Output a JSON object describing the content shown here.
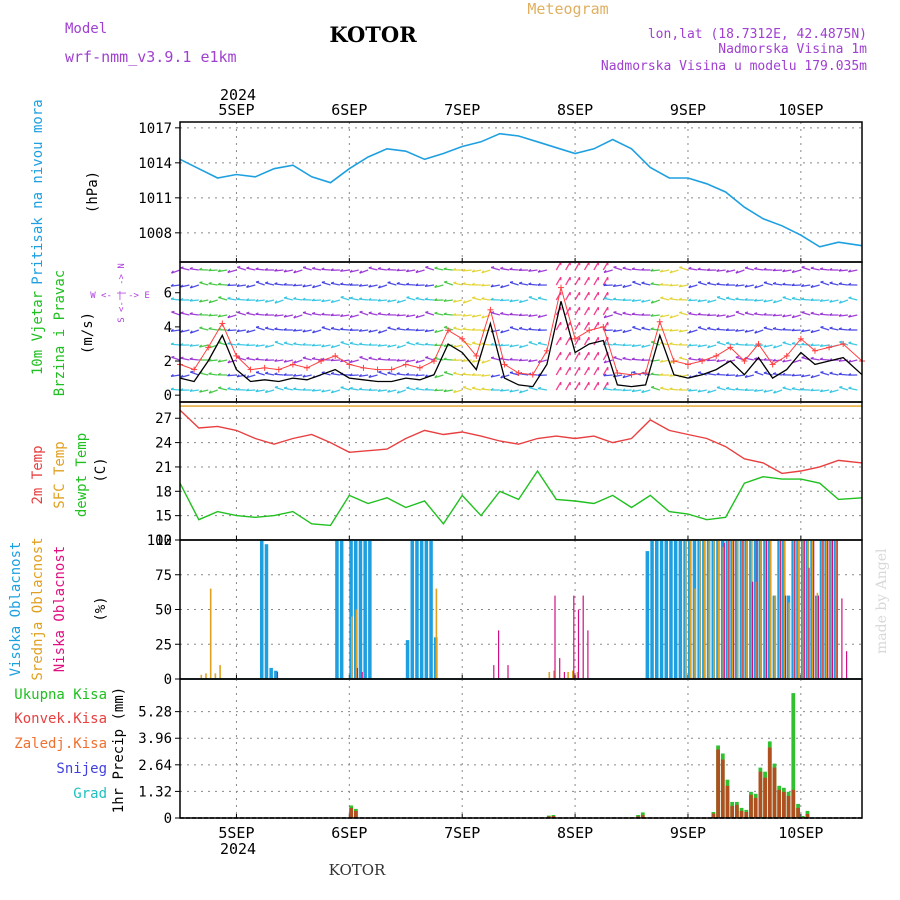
{
  "header": {
    "model_label": "Model",
    "model_name": "wrf-nmm_v3.9.1 e1km",
    "title": "KOTOR",
    "subtitle": "Meteogram",
    "coords": "lon,lat (18.7312E, 42.4875N)",
    "altitude": "Nadmorska Visina 1m",
    "model_altitude": "Nadmorska Visina u modelu 179.035m",
    "footer": "KOTOR",
    "watermark": "made by Angel"
  },
  "axes": {
    "year": "2024",
    "days": [
      "5SEP",
      "6SEP",
      "7SEP",
      "8SEP",
      "9SEP",
      "10SEP"
    ],
    "day_positions_hours": [
      12,
      36,
      60,
      84,
      108,
      132
    ],
    "time_range_hours": [
      0,
      145
    ]
  },
  "panels": {
    "pressure": {
      "label": "Pritisak na nivou mora",
      "unit": "(hPa)"
    },
    "wind": {
      "label1": "10m Vjetar",
      "label2": "Brzina i Pravac",
      "unit": "(m/s)",
      "compass": "S <- | -> N",
      "compass_we": "W <- | -> E"
    },
    "temp": {
      "label_2m": "2m Temp",
      "label_sfc": "SFC Temp",
      "label_dewpt": "dewpt Temp",
      "unit": "(C)"
    },
    "cloud": {
      "label_high": "Visoka Oblacnost",
      "label_mid": "Srednja Oblacnost",
      "label_low": "Niska Oblacnost",
      "unit": "(%)"
    },
    "precip": {
      "label_total": "Ukupna Kisa",
      "label_conv": "Konvek.Kisa",
      "label_frz": "Zaledj.Kisa",
      "label_snow": "Snijeg",
      "label_hail": "Grad",
      "unit": "1hr Precip (mm)"
    }
  },
  "colors": {
    "pressure": "#1ea0e0",
    "temp_2m": "#e84040",
    "temp_sfc": "#e0a020",
    "dewpt": "#20c020",
    "cloud_high": "#1ea0e0",
    "cloud_mid": "#e0a020",
    "cloud_low": "#d01080",
    "precip_total": "#30c030",
    "precip_conv": "#b05020",
    "wind_speed": "#000000",
    "wind_gust": "#ff4040"
  },
  "chart_data": [
    {
      "type": "line",
      "name": "pressure",
      "ylabel": "(hPa)",
      "ylim": [
        1005.5,
        1017.5
      ],
      "yticks": [
        1008,
        1011,
        1014,
        1017
      ],
      "grid": true,
      "x": [
        0,
        4,
        8,
        12,
        16,
        20,
        24,
        28,
        32,
        36,
        40,
        44,
        48,
        52,
        56,
        60,
        64,
        68,
        72,
        76,
        80,
        84,
        88,
        92,
        96,
        100,
        104,
        108,
        112,
        116,
        120,
        124,
        128,
        132,
        136,
        140,
        145
      ],
      "series": [
        {
          "values": [
            1014.3,
            1013.5,
            1012.7,
            1013.0,
            1012.8,
            1013.5,
            1013.8,
            1012.8,
            1012.3,
            1013.5,
            1014.5,
            1015.2,
            1015.0,
            1014.3,
            1014.8,
            1015.4,
            1015.8,
            1016.5,
            1016.3,
            1015.8,
            1015.3,
            1014.8,
            1015.2,
            1016.0,
            1015.2,
            1013.6,
            1012.7,
            1012.7,
            1012.2,
            1011.5,
            1010.2,
            1009.2,
            1008.6,
            1007.8,
            1006.8,
            1007.2,
            1006.9
          ]
        }
      ]
    },
    {
      "type": "line",
      "name": "wind",
      "ylabel": "(m/s)",
      "ylim": [
        -0.4,
        7.8
      ],
      "yticks": [
        0,
        2,
        4,
        6
      ],
      "grid": false,
      "x": [
        0,
        3,
        6,
        9,
        12,
        15,
        18,
        21,
        24,
        27,
        30,
        33,
        36,
        39,
        42,
        45,
        48,
        51,
        54,
        57,
        60,
        63,
        66,
        69,
        72,
        75,
        78,
        81,
        84,
        87,
        90,
        93,
        96,
        99,
        102,
        105,
        108,
        111,
        114,
        117,
        120,
        123,
        126,
        129,
        132,
        135,
        138,
        141,
        145
      ],
      "series": [
        {
          "values": [
            1.0,
            0.8,
            2.0,
            3.5,
            1.5,
            0.8,
            0.9,
            0.8,
            1.0,
            0.9,
            1.2,
            1.5,
            1.0,
            0.9,
            0.8,
            0.8,
            1.0,
            0.9,
            1.2,
            3.0,
            2.5,
            1.5,
            4.2,
            1.0,
            0.6,
            0.5,
            1.8,
            5.5,
            2.5,
            3.0,
            3.2,
            0.6,
            0.5,
            0.6,
            3.5,
            1.2,
            1.0,
            1.2,
            1.5,
            2.0,
            1.2,
            2.2,
            1.0,
            1.5,
            2.5,
            1.8,
            2.0,
            2.2,
            1.2
          ]
        },
        {
          "values": [
            1.8,
            1.5,
            2.8,
            4.2,
            2.3,
            1.5,
            1.6,
            1.5,
            1.8,
            1.6,
            2.0,
            2.3,
            1.8,
            1.6,
            1.5,
            1.5,
            1.8,
            1.6,
            2.0,
            3.8,
            3.3,
            2.3,
            5.0,
            1.8,
            1.3,
            1.2,
            2.6,
            6.3,
            3.3,
            3.8,
            4.0,
            1.3,
            1.2,
            1.3,
            4.3,
            2.0,
            1.8,
            2.0,
            2.3,
            2.8,
            2.0,
            3.0,
            1.8,
            2.3,
            3.3,
            2.6,
            2.8,
            3.0,
            2.0
          ]
        }
      ]
    },
    {
      "type": "line",
      "name": "temperature",
      "ylabel": "(C)",
      "ylim": [
        12,
        29
      ],
      "yticks": [
        12,
        15,
        18,
        21,
        24,
        27
      ],
      "grid": true,
      "x": [
        0,
        4,
        8,
        12,
        16,
        20,
        24,
        28,
        32,
        36,
        40,
        44,
        48,
        52,
        56,
        60,
        64,
        68,
        72,
        76,
        80,
        84,
        88,
        92,
        96,
        100,
        104,
        108,
        112,
        116,
        120,
        124,
        128,
        132,
        136,
        140,
        145
      ],
      "series": [
        {
          "values": [
            28.0,
            25.8,
            26.0,
            25.5,
            24.5,
            23.8,
            24.5,
            25.0,
            24.0,
            22.8,
            23.0,
            23.2,
            24.5,
            25.5,
            25.0,
            25.3,
            24.8,
            24.2,
            23.8,
            24.5,
            24.8,
            24.5,
            24.8,
            24.0,
            24.5,
            26.8,
            25.5,
            25.0,
            24.5,
            23.5,
            22.0,
            21.5,
            20.2,
            20.5,
            21.0,
            21.8,
            21.5
          ]
        },
        {
          "values": [
            28.5,
            28.5,
            28.5,
            28.5,
            28.5,
            28.5,
            28.5,
            28.5,
            28.5,
            28.5,
            28.5,
            28.5,
            28.5,
            28.5,
            28.5,
            28.5,
            28.5,
            28.5,
            28.5,
            28.5,
            28.5,
            28.5,
            28.5,
            28.5,
            28.5,
            28.5,
            28.5,
            28.5,
            28.5,
            28.5,
            28.5,
            28.5,
            28.5,
            28.5,
            28.5,
            28.5,
            28.5
          ]
        },
        {
          "values": [
            19.0,
            14.5,
            15.5,
            15.0,
            14.8,
            15.0,
            15.5,
            14.0,
            13.8,
            17.5,
            16.5,
            17.2,
            16.0,
            16.8,
            14.0,
            17.5,
            15.0,
            18.0,
            17.0,
            20.5,
            17.0,
            16.8,
            16.5,
            17.5,
            16.0,
            17.5,
            15.5,
            15.2,
            14.5,
            14.8,
            19.0,
            19.8,
            19.5,
            19.5,
            19.0,
            17.0,
            17.2
          ]
        }
      ]
    },
    {
      "type": "bar",
      "name": "cloud_cover",
      "ylabel": "(%)",
      "ylim": [
        0,
        100
      ],
      "yticks": [
        0,
        25,
        50,
        75,
        100
      ],
      "grid": true,
      "high": [
        [
          17,
          100
        ],
        [
          18,
          97
        ],
        [
          19,
          8
        ],
        [
          20,
          6
        ],
        [
          33,
          100
        ],
        [
          34,
          100
        ],
        [
          36,
          100
        ],
        [
          37,
          100
        ],
        [
          38,
          100
        ],
        [
          39,
          100
        ],
        [
          40,
          100
        ],
        [
          48,
          28
        ],
        [
          49,
          100
        ],
        [
          50,
          100
        ],
        [
          51,
          100
        ],
        [
          52,
          100
        ],
        [
          53,
          100
        ],
        [
          54,
          30
        ],
        [
          99,
          92
        ],
        [
          100,
          100
        ],
        [
          101,
          100
        ],
        [
          102,
          100
        ],
        [
          103,
          100
        ],
        [
          104,
          100
        ],
        [
          105,
          100
        ],
        [
          106,
          100
        ],
        [
          107,
          100
        ],
        [
          108,
          100
        ],
        [
          109,
          100
        ],
        [
          110,
          100
        ],
        [
          111,
          100
        ],
        [
          112,
          100
        ],
        [
          113,
          100
        ],
        [
          114,
          100
        ],
        [
          115,
          100
        ],
        [
          116,
          100
        ],
        [
          117,
          100
        ],
        [
          118,
          100
        ],
        [
          119,
          100
        ],
        [
          120,
          100
        ],
        [
          121,
          100
        ],
        [
          122,
          100
        ],
        [
          123,
          100
        ],
        [
          124,
          100
        ],
        [
          125,
          100
        ],
        [
          126,
          60
        ],
        [
          127,
          100
        ],
        [
          128,
          100
        ],
        [
          129,
          60
        ],
        [
          130,
          100
        ],
        [
          131,
          100
        ],
        [
          132,
          100
        ],
        [
          133,
          100
        ],
        [
          134,
          100
        ],
        [
          135,
          60
        ],
        [
          136,
          100
        ],
        [
          137,
          100
        ],
        [
          138,
          100
        ],
        [
          139,
          100
        ]
      ],
      "mid": [
        [
          4,
          3
        ],
        [
          5,
          4
        ],
        [
          6,
          65
        ],
        [
          7,
          4
        ],
        [
          8,
          10
        ],
        [
          36,
          45
        ],
        [
          37,
          50
        ],
        [
          54,
          65
        ],
        [
          78,
          5
        ],
        [
          79,
          6
        ],
        [
          82,
          5
        ],
        [
          83,
          6
        ],
        [
          84,
          5
        ],
        [
          107,
          100
        ],
        [
          108,
          100
        ],
        [
          109,
          65
        ],
        [
          110,
          100
        ],
        [
          111,
          100
        ],
        [
          112,
          100
        ],
        [
          113,
          100
        ],
        [
          114,
          100
        ],
        [
          115,
          95
        ],
        [
          116,
          100
        ],
        [
          117,
          100
        ],
        [
          118,
          100
        ],
        [
          119,
          100
        ],
        [
          120,
          100
        ],
        [
          121,
          100
        ],
        [
          122,
          70
        ],
        [
          123,
          100
        ],
        [
          124,
          100
        ],
        [
          125,
          100
        ],
        [
          126,
          60
        ],
        [
          127,
          100
        ],
        [
          128,
          100
        ],
        [
          129,
          55
        ],
        [
          130,
          100
        ],
        [
          131,
          100
        ],
        [
          132,
          100
        ],
        [
          133,
          100
        ],
        [
          134,
          100
        ],
        [
          135,
          62
        ],
        [
          136,
          100
        ],
        [
          137,
          100
        ],
        [
          138,
          100
        ],
        [
          139,
          100
        ]
      ],
      "low": [
        [
          20,
          5
        ],
        [
          37,
          8
        ],
        [
          38,
          5
        ],
        [
          66,
          10
        ],
        [
          67,
          35
        ],
        [
          69,
          10
        ],
        [
          79,
          60
        ],
        [
          80,
          15
        ],
        [
          81,
          5
        ],
        [
          83,
          60
        ],
        [
          84,
          50
        ],
        [
          85,
          60
        ],
        [
          86,
          35
        ],
        [
          115,
          98
        ],
        [
          116,
          100
        ],
        [
          117,
          100
        ],
        [
          119,
          100
        ],
        [
          121,
          70
        ],
        [
          122,
          100
        ],
        [
          124,
          100
        ],
        [
          127,
          100
        ],
        [
          128,
          60
        ],
        [
          130,
          100
        ],
        [
          132,
          100
        ],
        [
          133,
          80
        ],
        [
          134,
          100
        ],
        [
          135,
          60
        ],
        [
          136,
          100
        ],
        [
          137,
          100
        ],
        [
          138,
          100
        ],
        [
          139,
          100
        ],
        [
          140,
          58
        ],
        [
          141,
          20
        ]
      ]
    },
    {
      "type": "bar",
      "name": "precipitation",
      "ylabel": "1hr Precip (mm)",
      "ylim": [
        0,
        6.9
      ],
      "yticks": [
        0,
        1.32,
        2.64,
        3.96,
        5.28
      ],
      "grid": true,
      "total": [
        [
          36,
          0.62
        ],
        [
          37,
          0.45
        ],
        [
          78,
          0.12
        ],
        [
          79,
          0.15
        ],
        [
          97,
          0.15
        ],
        [
          98,
          0.28
        ],
        [
          113,
          0.3
        ],
        [
          114,
          3.6
        ],
        [
          115,
          3.2
        ],
        [
          116,
          1.9
        ],
        [
          117,
          0.8
        ],
        [
          118,
          0.8
        ],
        [
          119,
          0.5
        ],
        [
          120,
          0.4
        ],
        [
          121,
          1.3
        ],
        [
          122,
          1.2
        ],
        [
          123,
          2.5
        ],
        [
          124,
          2.3
        ],
        [
          125,
          3.8
        ],
        [
          126,
          2.7
        ],
        [
          127,
          1.6
        ],
        [
          128,
          1.5
        ],
        [
          129,
          1.3
        ],
        [
          130,
          6.2
        ],
        [
          131,
          0.7
        ],
        [
          132,
          0.1
        ],
        [
          133,
          0.35
        ]
      ],
      "conv": [
        [
          36,
          0.5
        ],
        [
          37,
          0.35
        ],
        [
          78,
          0.08
        ],
        [
          79,
          0.1
        ],
        [
          97,
          0.08
        ],
        [
          98,
          0.15
        ],
        [
          113,
          0.22
        ],
        [
          114,
          3.4
        ],
        [
          115,
          2.9
        ],
        [
          116,
          1.6
        ],
        [
          117,
          0.6
        ],
        [
          118,
          0.65
        ],
        [
          119,
          0.35
        ],
        [
          120,
          0.3
        ],
        [
          121,
          1.15
        ],
        [
          122,
          1.0
        ],
        [
          123,
          2.3
        ],
        [
          124,
          2.0
        ],
        [
          125,
          3.5
        ],
        [
          126,
          2.5
        ],
        [
          127,
          1.4
        ],
        [
          128,
          1.3
        ],
        [
          129,
          1.1
        ],
        [
          130,
          1.4
        ],
        [
          131,
          0.5
        ],
        [
          132,
          0.05
        ],
        [
          133,
          0.2
        ]
      ]
    }
  ]
}
